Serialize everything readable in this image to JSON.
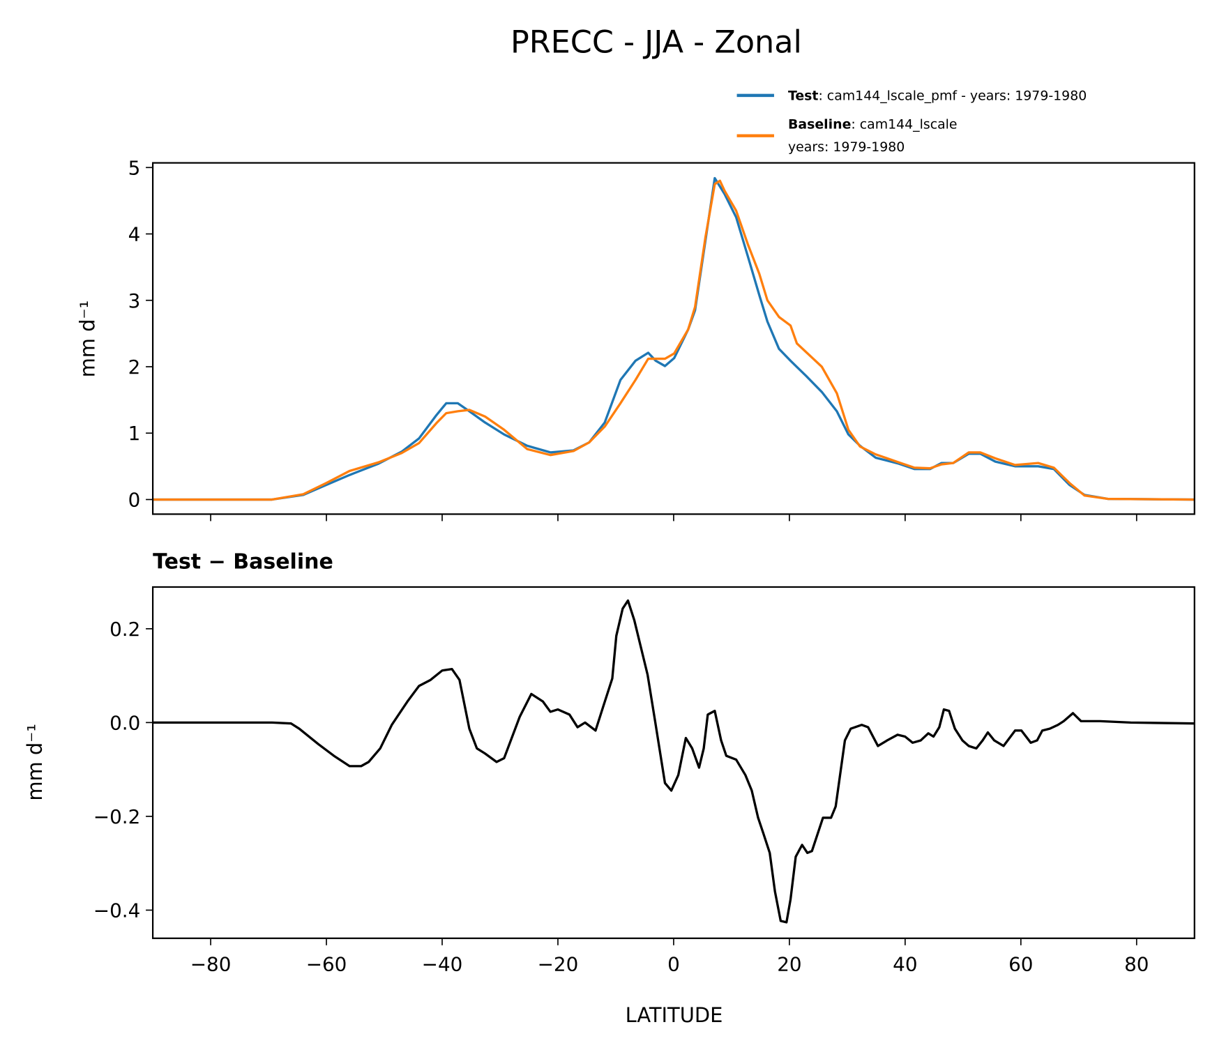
{
  "chart_data": [
    {
      "type": "line",
      "title": "PRECC - JJA - Zonal",
      "xlabel": "",
      "ylabel": "mm d⁻¹",
      "xlim": [
        -90,
        90
      ],
      "ylim": [
        -0.22,
        5.07
      ],
      "xticks": [
        -80,
        -60,
        -40,
        -20,
        0,
        20,
        40,
        60,
        80
      ],
      "yticks": [
        0,
        1,
        2,
        3,
        4,
        5
      ],
      "ytick_labels": [
        "0",
        "1",
        "2",
        "3",
        "4",
        "5"
      ],
      "grid": false,
      "legend_position": "top-right, above the plot",
      "legend": [
        {
          "bold": "Test",
          "text": ": cam144_lscale_pmf - years: 1979-1980",
          "text2": "",
          "color": "#1f77b4"
        },
        {
          "bold": "Baseline",
          "text": ": cam144_lscale",
          "text2": "years: 1979-1980",
          "color": "#ff7f0e"
        }
      ],
      "series": [
        {
          "name": "Test",
          "color": "#1f77b4",
          "x": [
            -90,
            -69.4,
            -64,
            -60,
            -56,
            -51,
            -47,
            -44,
            -41,
            -39.3,
            -37.3,
            -35.3,
            -32.6,
            -29.3,
            -25.3,
            -21.3,
            -17.3,
            -14.6,
            -11.9,
            -9.2,
            -6.6,
            -4.4,
            -3.1,
            -1.5,
            0.1,
            2.5,
            3.7,
            5.5,
            7.1,
            8.8,
            10.8,
            12.8,
            14.8,
            16.2,
            18.2,
            20.2,
            22.9,
            25.6,
            28.2,
            30.2,
            32.2,
            34.9,
            38.9,
            41.6,
            44.3,
            46.3,
            48.3,
            51,
            53,
            55.6,
            59,
            63,
            65.7,
            68.4,
            71,
            75,
            90
          ],
          "y": [
            0,
            0,
            0.07,
            0.22,
            0.37,
            0.54,
            0.72,
            0.92,
            1.27,
            1.45,
            1.45,
            1.33,
            1.16,
            0.98,
            0.81,
            0.71,
            0.74,
            0.86,
            1.16,
            1.8,
            2.09,
            2.21,
            2.09,
            2.01,
            2.13,
            2.56,
            2.85,
            3.9,
            4.84,
            4.6,
            4.25,
            3.67,
            3.08,
            2.68,
            2.27,
            2.09,
            1.86,
            1.62,
            1.33,
            0.98,
            0.81,
            0.63,
            0.54,
            0.46,
            0.46,
            0.55,
            0.55,
            0.69,
            0.69,
            0.57,
            0.5,
            0.5,
            0.46,
            0.22,
            0.07,
            0.01,
            0
          ]
        },
        {
          "name": "Baseline",
          "color": "#ff7f0e",
          "x": [
            -90,
            -69.4,
            -64,
            -60,
            -56,
            -51,
            -47,
            -44,
            -41,
            -39.3,
            -37.3,
            -35.3,
            -32.6,
            -29.3,
            -25.3,
            -21.3,
            -17.3,
            -14.6,
            -11.9,
            -9.2,
            -6.6,
            -4.4,
            -3.1,
            -1.5,
            0.1,
            2.5,
            3.7,
            5.5,
            7.1,
            8.0,
            8.8,
            10.8,
            12.8,
            14.8,
            16.2,
            18.2,
            20.2,
            21.3,
            22.9,
            25.6,
            28.2,
            30.2,
            32.2,
            34.9,
            38.9,
            41.6,
            44.3,
            46.3,
            48.3,
            51,
            53,
            55.6,
            59,
            63,
            65.7,
            68.4,
            71,
            75,
            90
          ],
          "y": [
            0,
            0,
            0.08,
            0.25,
            0.43,
            0.56,
            0.7,
            0.85,
            1.15,
            1.3,
            1.33,
            1.35,
            1.25,
            1.05,
            0.76,
            0.67,
            0.73,
            0.86,
            1.1,
            1.45,
            1.8,
            2.12,
            2.12,
            2.12,
            2.2,
            2.56,
            2.9,
            3.95,
            4.75,
            4.8,
            4.65,
            4.35,
            3.85,
            3.4,
            3.0,
            2.75,
            2.62,
            2.35,
            2.22,
            2.0,
            1.6,
            1.05,
            0.8,
            0.68,
            0.56,
            0.48,
            0.47,
            0.53,
            0.55,
            0.71,
            0.71,
            0.62,
            0.52,
            0.55,
            0.48,
            0.25,
            0.06,
            0.01,
            0
          ]
        }
      ]
    },
    {
      "type": "line",
      "title": "Test − Baseline",
      "xlabel": "LATITUDE",
      "ylabel": "mm d⁻¹",
      "xlim": [
        -90,
        90
      ],
      "ylim": [
        -0.46,
        0.289
      ],
      "xticks": [
        -80,
        -60,
        -40,
        -20,
        0,
        20,
        40,
        60,
        80
      ],
      "xtick_labels": [
        "−80",
        "−60",
        "−40",
        "−20",
        "0",
        "20",
        "40",
        "60",
        "80"
      ],
      "yticks": [
        -0.4,
        -0.2,
        0.0,
        0.2
      ],
      "ytick_labels": [
        "−0.4",
        "−0.2",
        "0.0",
        "0.2"
      ],
      "grid": false,
      "series": [
        {
          "name": "Test − Baseline",
          "color": "#000000",
          "x": [
            -90,
            -69.4,
            -66.1,
            -64.7,
            -61.4,
            -58.7,
            -56,
            -54,
            -52.7,
            -50.7,
            -48.7,
            -46,
            -44,
            -42,
            -40,
            -38.3,
            -37,
            -35.3,
            -34,
            -32.6,
            -30.6,
            -29.3,
            -26.6,
            -24.6,
            -22.6,
            -21.3,
            -20,
            -18,
            -16.6,
            -15.3,
            -13.5,
            -12.2,
            -10.6,
            -9.9,
            -8.8,
            -7.9,
            -6.8,
            -4.5,
            -3.2,
            -1.5,
            -0.4,
            0.8,
            2.1,
            3.2,
            4.4,
            5.2,
            5.9,
            7.1,
            8.2,
            9.1,
            10.8,
            12.4,
            13.5,
            14.6,
            15.5,
            16.6,
            17.5,
            18.5,
            19.5,
            20.2,
            21.1,
            22.2,
            23.1,
            23.9,
            25.8,
            27.2,
            28,
            29.6,
            30.6,
            32.5,
            33.6,
            35.3,
            36.9,
            38.7,
            40,
            41.3,
            42.7,
            44,
            44.9,
            45.9,
            46.7,
            47.6,
            48.6,
            49.9,
            51,
            52.3,
            53.4,
            54.3,
            55.4,
            57,
            59,
            60.1,
            61.7,
            62.8,
            63.7,
            65,
            66.4,
            67.4,
            69,
            70.4,
            73.7,
            79,
            90
          ],
          "y": [
            0,
            0,
            -0.002,
            -0.013,
            -0.046,
            -0.071,
            -0.093,
            -0.093,
            -0.084,
            -0.055,
            -0.005,
            0.045,
            0.078,
            0.091,
            0.111,
            0.114,
            0.091,
            -0.013,
            -0.055,
            -0.066,
            -0.084,
            -0.076,
            0.012,
            0.061,
            0.045,
            0.023,
            0.028,
            0.017,
            -0.01,
            0,
            -0.017,
            0.033,
            0.094,
            0.185,
            0.243,
            0.26,
            0.218,
            0.102,
            0.003,
            -0.129,
            -0.145,
            -0.112,
            -0.033,
            -0.055,
            -0.096,
            -0.055,
            0.017,
            0.025,
            -0.038,
            -0.071,
            -0.079,
            -0.112,
            -0.145,
            -0.203,
            -0.236,
            -0.278,
            -0.36,
            -0.423,
            -0.426,
            -0.377,
            -0.286,
            -0.261,
            -0.278,
            -0.274,
            -0.203,
            -0.203,
            -0.179,
            -0.038,
            -0.013,
            -0.005,
            -0.01,
            -0.05,
            -0.038,
            -0.026,
            -0.03,
            -0.043,
            -0.038,
            -0.023,
            -0.03,
            -0.01,
            0.028,
            0.025,
            -0.013,
            -0.038,
            -0.05,
            -0.055,
            -0.038,
            -0.021,
            -0.038,
            -0.05,
            -0.017,
            -0.017,
            -0.043,
            -0.038,
            -0.017,
            -0.013,
            -0.005,
            0.003,
            0.02,
            0.003,
            0.003,
            0,
            -0.002
          ]
        }
      ]
    }
  ]
}
